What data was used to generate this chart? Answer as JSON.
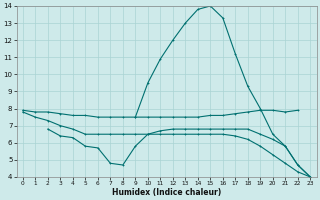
{
  "xlabel": "Humidex (Indice chaleur)",
  "bg_color": "#ceeaea",
  "grid_color": "#aad4d4",
  "line_color": "#007070",
  "xlim": [
    -0.5,
    23.5
  ],
  "ylim": [
    4,
    14
  ],
  "yticks": [
    4,
    5,
    6,
    7,
    8,
    9,
    10,
    11,
    12,
    13,
    14
  ],
  "xticks": [
    0,
    1,
    2,
    3,
    4,
    5,
    6,
    7,
    8,
    9,
    10,
    11,
    12,
    13,
    14,
    15,
    16,
    17,
    18,
    19,
    20,
    21,
    22,
    23
  ],
  "line1_x": [
    0,
    1,
    2,
    3,
    4,
    5,
    6,
    7,
    8,
    9,
    10,
    11,
    12,
    13,
    14,
    15,
    16,
    17,
    18,
    19,
    20,
    21,
    22
  ],
  "line1_y": [
    7.9,
    7.8,
    7.8,
    7.7,
    7.6,
    7.6,
    7.5,
    7.5,
    7.5,
    7.5,
    7.5,
    7.5,
    7.5,
    7.5,
    7.5,
    7.6,
    7.6,
    7.7,
    7.8,
    7.9,
    7.9,
    7.8,
    7.9
  ],
  "line2_x": [
    2,
    3,
    4,
    5,
    6,
    7,
    8,
    9,
    10,
    11,
    12,
    13,
    14,
    15,
    16,
    17,
    18,
    19,
    20,
    21,
    22,
    23
  ],
  "line2_y": [
    6.8,
    6.4,
    6.3,
    5.8,
    5.7,
    4.8,
    4.7,
    5.8,
    6.5,
    6.7,
    6.8,
    6.8,
    6.8,
    6.8,
    6.8,
    6.8,
    6.8,
    6.5,
    6.2,
    5.8,
    4.7,
    4.0
  ],
  "line3_x": [
    9,
    10,
    11,
    12,
    13,
    14,
    15,
    16,
    17,
    18,
    19,
    20,
    21,
    22,
    23
  ],
  "line3_y": [
    7.5,
    9.5,
    10.9,
    12.0,
    13.0,
    13.8,
    14.0,
    13.3,
    11.2,
    9.3,
    8.0,
    6.5,
    5.8,
    4.7,
    4.0
  ],
  "line4_x": [
    0,
    1,
    2,
    3,
    4,
    5,
    6,
    7,
    8,
    9,
    10,
    11,
    12,
    13,
    14,
    15,
    16,
    17,
    18,
    19,
    20,
    21,
    22,
    23
  ],
  "line4_y": [
    7.8,
    7.5,
    7.3,
    7.0,
    6.8,
    6.5,
    6.5,
    6.5,
    6.5,
    6.5,
    6.5,
    6.5,
    6.5,
    6.5,
    6.5,
    6.5,
    6.5,
    6.4,
    6.2,
    5.8,
    5.3,
    4.8,
    4.3,
    4.0
  ]
}
